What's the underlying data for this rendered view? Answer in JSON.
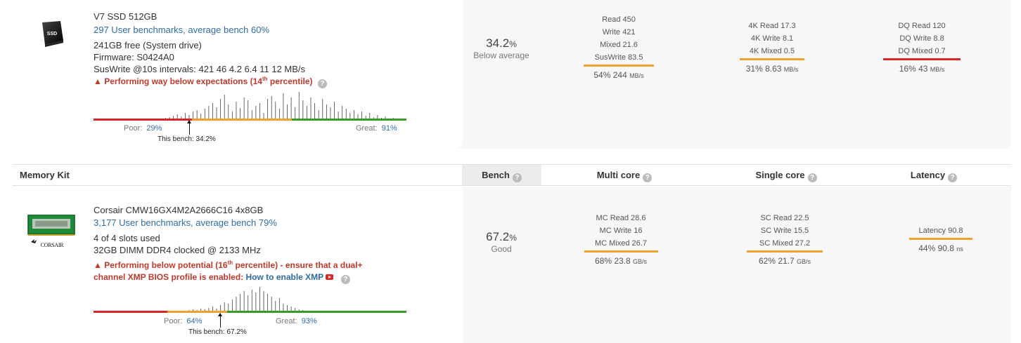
{
  "ssd": {
    "title": "V7 SSD 512GB",
    "icon": "ssd-icon",
    "icon_text": "SSD",
    "benchmarks_link": "297 User benchmarks, average bench 60%",
    "free": "241GB free (System drive)",
    "firmware": "Firmware: S0424A0",
    "suswrite": "SusWrite @10s intervals: 421 46 4.2 6.4 11 12 MB/s",
    "warning_pre": "Performing way below expectations (14",
    "warning_sup": "th",
    "warning_post": " percentile)",
    "score_pct": "34.2",
    "score_unit": "%",
    "score_label": "Below average",
    "poor_label": "Poor:",
    "poor_value": "29%",
    "great_label": "Great:",
    "great_value": "91%",
    "this_bench": "This bench: 34.2%",
    "metrics": [
      {
        "rows": [
          "Read 450",
          "Write 421",
          "Mixed 21.6",
          "SusWrite 83.5"
        ],
        "sum": "54% 244",
        "unit": "MB/s",
        "color": "#f0a030"
      },
      {
        "rows": [
          "4K Read 17.3",
          "4K Write 8.1",
          "4K Mixed 0.5"
        ],
        "sum": "31% 8.63",
        "unit": "MB/s",
        "color": "#f0a030"
      },
      {
        "rows": [
          "DQ Read 120",
          "DQ Write 8.8",
          "DQ Mixed 0.7"
        ],
        "sum": "16% 43",
        "unit": "MB/s",
        "color": "#d9262a"
      }
    ]
  },
  "header": {
    "col1": "Memory Kit",
    "col2": "Bench",
    "col3": "Multi core",
    "col4": "Single core",
    "col5": "Latency",
    "help_glyph": "?"
  },
  "memory": {
    "title": "Corsair CMW16GX4M2A2666C16 4x8GB",
    "logo_text": "CORSAIR",
    "benchmarks_link": "3,177 User benchmarks, average bench 79%",
    "slots": "4 of 4 slots used",
    "clock": "32GB DIMM DDR4 clocked @ 2133 MHz",
    "warning_pre": "Performing below potential (16",
    "warning_sup": "th",
    "warning_mid": " percentile) - ensure that a dual+",
    "warning_line2": "channel XMP BIOS profile is enabled: ",
    "xmp_link": "How to enable XMP",
    "score_pct": "67.2",
    "score_unit": "%",
    "score_label": "Good",
    "poor_label": "Poor:",
    "poor_value": "64%",
    "great_label": "Great:",
    "great_value": "93%",
    "this_bench": "This bench: 67.2%",
    "metrics": [
      {
        "rows": [
          "MC Read 28.6",
          "MC Write 16",
          "MC Mixed 26.7"
        ],
        "sum": "68% 23.8",
        "unit": "GB/s",
        "color": "#f0a030"
      },
      {
        "rows": [
          "SC Read 22.5",
          "SC Write 15.5",
          "SC Mixed 27.2"
        ],
        "sum": "62% 21.7",
        "unit": "GB/s",
        "color": "#f0a030"
      },
      {
        "rows": [
          "Latency 90.8"
        ],
        "sum": "44% 90.8",
        "unit": "ns",
        "color": "#f0a030"
      }
    ]
  },
  "colors": {
    "poor": "#d9262a",
    "mid": "#f0a030",
    "great": "#3a9a2a",
    "link": "#2e6da4"
  }
}
